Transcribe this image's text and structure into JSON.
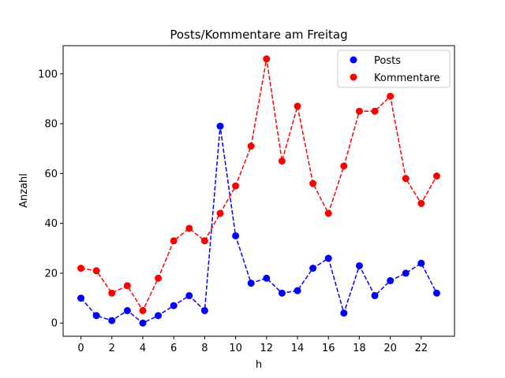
{
  "chart_data": {
    "type": "line",
    "title": "Posts/Kommentare am Freitag",
    "xlabel": "h",
    "ylabel": "Anzahl",
    "x": [
      0,
      1,
      2,
      3,
      4,
      5,
      6,
      7,
      8,
      9,
      10,
      11,
      12,
      13,
      14,
      15,
      16,
      17,
      18,
      19,
      20,
      21,
      22,
      23
    ],
    "xticks": [
      0,
      2,
      4,
      6,
      8,
      10,
      12,
      14,
      16,
      18,
      20,
      22
    ],
    "yticks": [
      0,
      20,
      40,
      60,
      80,
      100
    ],
    "xlim": [
      -1.15,
      24.15
    ],
    "ylim": [
      -5.3,
      111.3
    ],
    "grid": false,
    "legend_position": "top-right",
    "series": [
      {
        "name": "Posts",
        "color": "#0000ff",
        "line_style": "dashed",
        "marker": "circle",
        "values": [
          10,
          3,
          1,
          5,
          0,
          3,
          7,
          11,
          5,
          79,
          35,
          16,
          18,
          12,
          13,
          22,
          26,
          4,
          23,
          11,
          17,
          20,
          24,
          12
        ]
      },
      {
        "name": "Kommentare",
        "color": "#ff0000",
        "line_style": "dashed",
        "marker": "circle",
        "values": [
          22,
          21,
          12,
          15,
          5,
          18,
          33,
          38,
          33,
          44,
          55,
          71,
          106,
          65,
          87,
          56,
          44,
          63,
          85,
          85,
          91,
          58,
          48,
          59
        ]
      }
    ]
  }
}
